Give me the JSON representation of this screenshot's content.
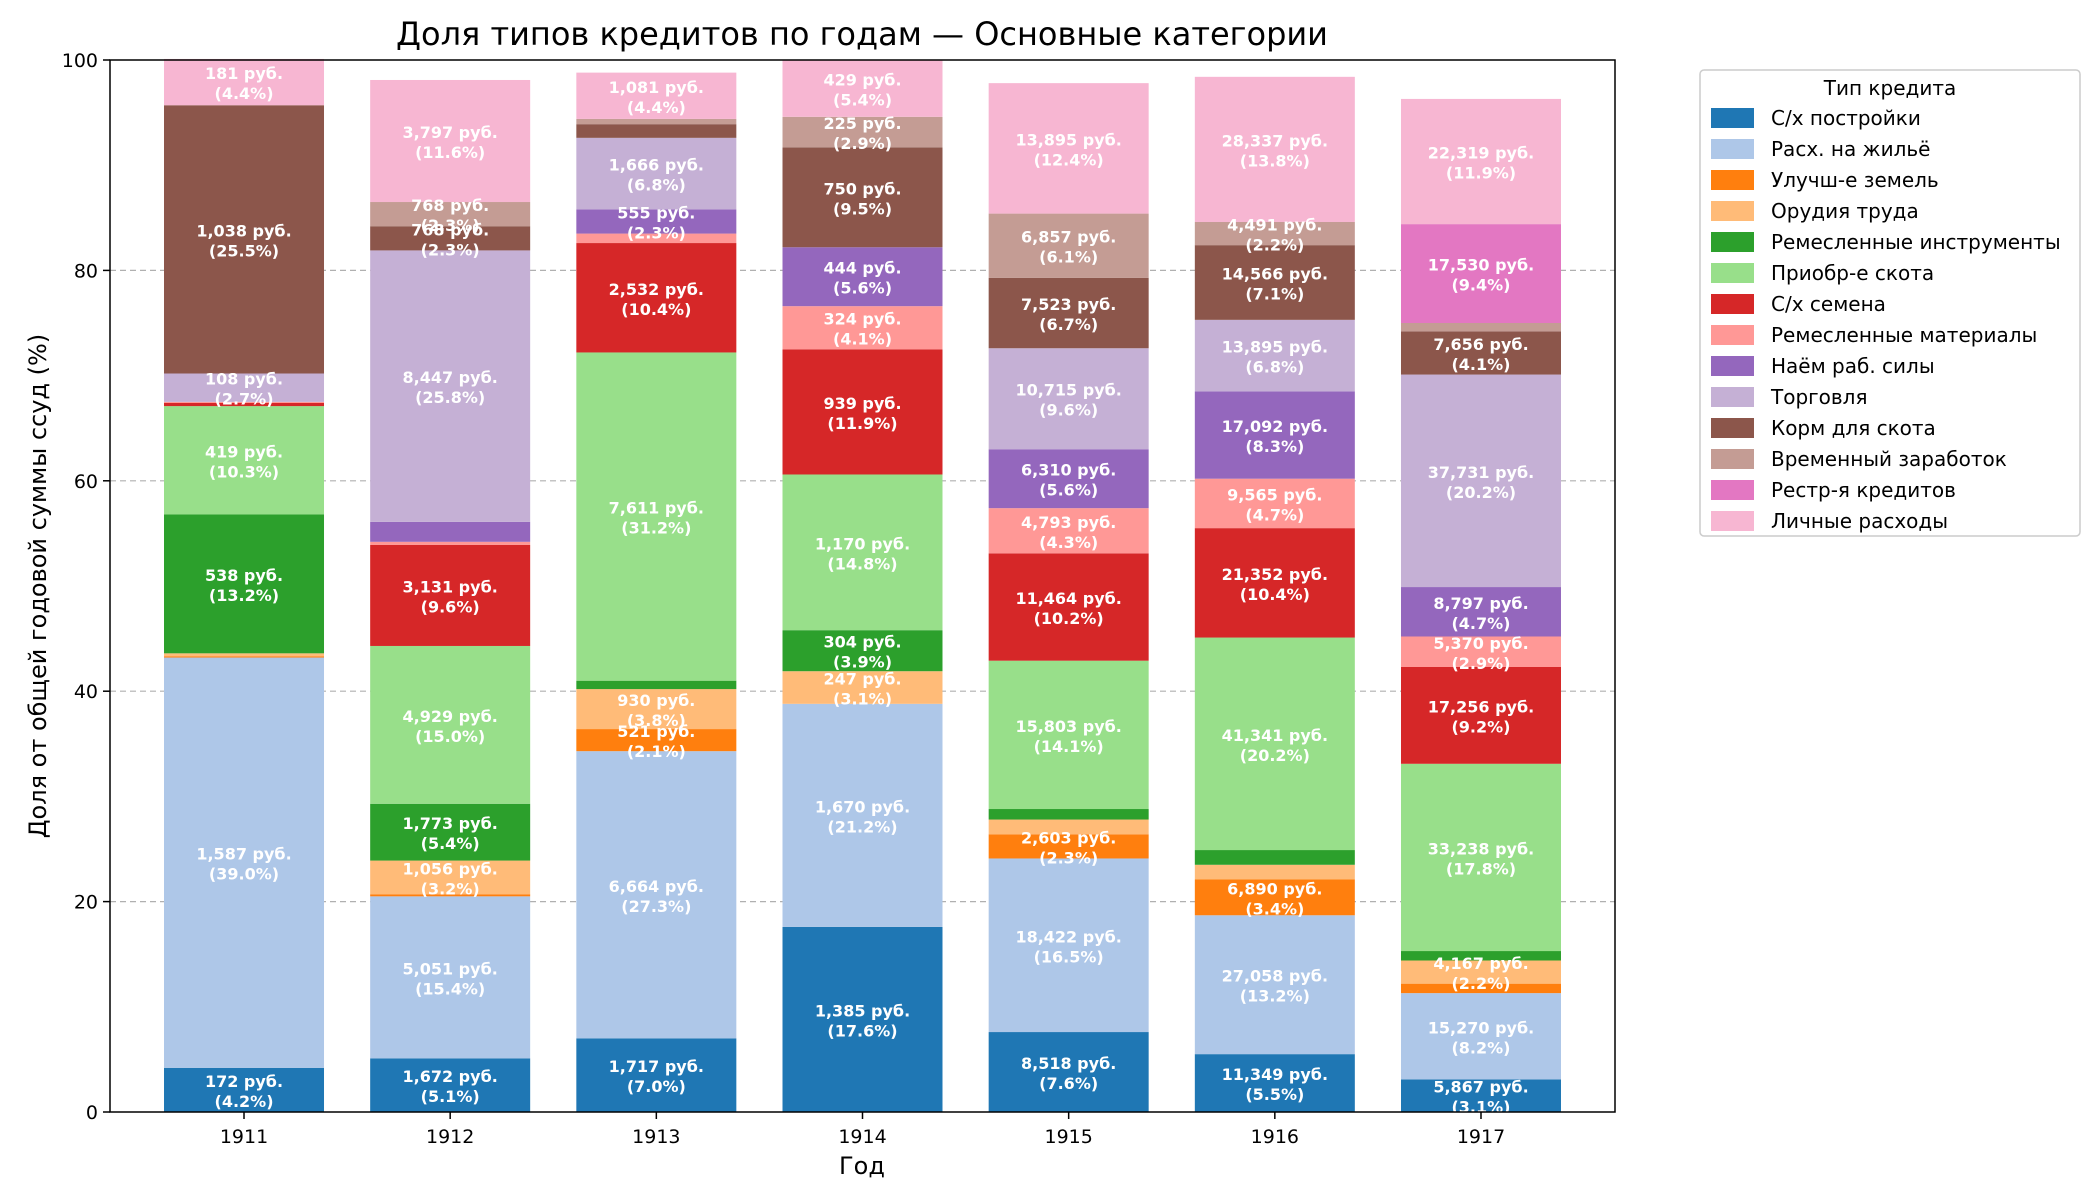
{
  "chart_data": {
    "type": "bar",
    "stacked": true,
    "title": "Доля типов кредитов по годам — Основные категории",
    "xlabel": "Год",
    "ylabel": "Доля от общей годовой суммы ссуд (%)",
    "ylim": [
      0,
      100
    ],
    "yticks": [
      "0",
      "20",
      "40",
      "60",
      "80",
      "100"
    ],
    "grid": true,
    "legend": {
      "title": "Тип кредита",
      "placement": "outside-top-right"
    },
    "categories": [
      "1911",
      "1912",
      "1913",
      "1914",
      "1915",
      "1916",
      "1917"
    ],
    "series": [
      {
        "name": "С/х постройки",
        "color": "#1f77b4",
        "values": [
          4.2,
          5.1,
          7.0,
          17.6,
          7.6,
          5.5,
          3.1
        ],
        "labels": [
          "172 руб.\n(4.2%)",
          "1,672 руб.\n(5.1%)",
          "1,717 руб.\n(7.0%)",
          "1,385 руб.\n(17.6%)",
          "8,518 руб.\n(7.6%)",
          "11,349 руб.\n(5.5%)",
          "5,867 руб.\n(3.1%)"
        ]
      },
      {
        "name": "Расх. на жильё",
        "color": "#aec7e8",
        "values": [
          39.0,
          15.4,
          27.3,
          21.2,
          16.5,
          13.2,
          8.2
        ],
        "labels": [
          "1,587 руб.\n(39.0%)",
          "5,051 руб.\n(15.4%)",
          "6,664 руб.\n(27.3%)",
          "1,670 руб.\n(21.2%)",
          "18,422 руб.\n(16.5%)",
          "27,058 руб.\n(13.2%)",
          "15,270 руб.\n(8.2%)"
        ]
      },
      {
        "name": "Улучш-е земель",
        "color": "#ff7f0e",
        "values": [
          0.1,
          0.2,
          2.1,
          0.0,
          2.3,
          3.4,
          0.9
        ],
        "labels": [
          "",
          "",
          "521 руб.\n(2.1%)",
          "",
          "2,603 руб.\n(2.3%)",
          "6,890 руб.\n(3.4%)",
          ""
        ]
      },
      {
        "name": "Орудия труда",
        "color": "#ffbb78",
        "values": [
          0.3,
          3.2,
          3.8,
          3.1,
          1.4,
          1.4,
          2.2
        ],
        "labels": [
          "",
          "1,056 руб.\n(3.2%)",
          "930 руб.\n(3.8%)",
          "247 руб.\n(3.1%)",
          "",
          "",
          "4,167 руб.\n(2.2%)"
        ]
      },
      {
        "name": "Ремесленные инструменты",
        "color": "#2ca02c",
        "values": [
          13.2,
          5.4,
          0.8,
          3.9,
          1.0,
          1.4,
          0.9
        ],
        "labels": [
          "538 руб.\n(13.2%)",
          "1,773 руб.\n(5.4%)",
          "",
          "304 руб.\n(3.9%)",
          "",
          "",
          ""
        ]
      },
      {
        "name": "Приобр-е скота",
        "color": "#98df8a",
        "values": [
          10.3,
          15.0,
          31.2,
          14.8,
          14.1,
          20.2,
          17.8
        ],
        "labels": [
          "419 руб.\n(10.3%)",
          "4,929 руб.\n(15.0%)",
          "7,611 руб.\n(31.2%)",
          "1,170 руб.\n(14.8%)",
          "15,803 руб.\n(14.1%)",
          "41,341 руб.\n(20.2%)",
          "33,238 руб.\n(17.8%)"
        ]
      },
      {
        "name": "С/х семена",
        "color": "#d62728",
        "values": [
          0.3,
          9.6,
          10.4,
          11.9,
          10.2,
          10.4,
          9.2
        ],
        "labels": [
          "",
          "3,131 руб.\n(9.6%)",
          "2,532 руб.\n(10.4%)",
          "939 руб.\n(11.9%)",
          "11,464 руб.\n(10.2%)",
          "21,352 руб.\n(10.4%)",
          "17,256 руб.\n(9.2%)"
        ]
      },
      {
        "name": "Ремесленные материалы",
        "color": "#ff9896",
        "values": [
          0.1,
          0.3,
          0.9,
          4.1,
          4.3,
          4.7,
          2.9
        ],
        "labels": [
          "",
          "",
          "",
          "324 руб.\n(4.1%)",
          "4,793 руб.\n(4.3%)",
          "9,565 руб.\n(4.7%)",
          "5,370 руб.\n(2.9%)"
        ]
      },
      {
        "name": "Наём раб. силы",
        "color": "#9467bd",
        "values": [
          0.0,
          1.9,
          2.3,
          5.6,
          5.6,
          8.3,
          4.7
        ],
        "labels": [
          "",
          "",
          "555 руб.\n(2.3%)",
          "444 руб.\n(5.6%)",
          "6,310 руб.\n(5.6%)",
          "17,092 руб.\n(8.3%)",
          "8,797 руб.\n(4.7%)"
        ]
      },
      {
        "name": "Торговля",
        "color": "#c5b0d5",
        "values": [
          2.7,
          25.8,
          6.8,
          0.0,
          9.6,
          6.8,
          20.2
        ],
        "labels": [
          "108 руб.\n(2.7%)",
          "8,447 руб.\n(25.8%)",
          "1,666 руб.\n(6.8%)",
          "",
          "10,715 руб.\n(9.6%)",
          "13,895 руб.\n(6.8%)",
          "37,731 руб.\n(20.2%)"
        ]
      },
      {
        "name": "Корм для скота",
        "color": "#8c564b",
        "values": [
          25.5,
          2.3,
          1.3,
          9.5,
          6.7,
          7.1,
          4.1
        ],
        "labels": [
          "1,038 руб.\n(25.5%)",
          "768 руб.\n(2.3%)",
          "",
          "750 руб.\n(9.5%)",
          "7,523 руб.\n(6.7%)",
          "14,566 руб.\n(7.1%)",
          "7,656 руб.\n(4.1%)"
        ]
      },
      {
        "name": "Временный заработок",
        "color": "#c49c94",
        "values": [
          0.0,
          2.3,
          0.5,
          2.9,
          6.1,
          2.2,
          0.8
        ],
        "labels": [
          "",
          "768 руб.\n(2.3%)",
          "",
          "225 руб.\n(2.9%)",
          "6,857 руб.\n(6.1%)",
          "4,491 руб.\n(2.2%)",
          ""
        ]
      },
      {
        "name": "Рестр-я кредитов",
        "color": "#e377c2",
        "values": [
          0.0,
          0.0,
          0.0,
          0.0,
          0.0,
          0.0,
          9.4
        ],
        "labels": [
          "",
          "",
          "",
          "",
          "",
          "",
          "17,530 руб.\n(9.4%)"
        ]
      },
      {
        "name": "Личные расходы",
        "color": "#f7b6d2",
        "values": [
          4.4,
          11.6,
          4.4,
          5.4,
          12.4,
          13.8,
          11.9
        ],
        "labels": [
          "181 руб.\n(4.4%)",
          "3,797 руб.\n(11.6%)",
          "1,081 руб.\n(4.4%)",
          "429 руб.\n(5.4%)",
          "13,895 руб.\n(12.4%)",
          "28,337 руб.\n(13.8%)",
          "22,319 руб.\n(11.9%)"
        ]
      }
    ]
  }
}
